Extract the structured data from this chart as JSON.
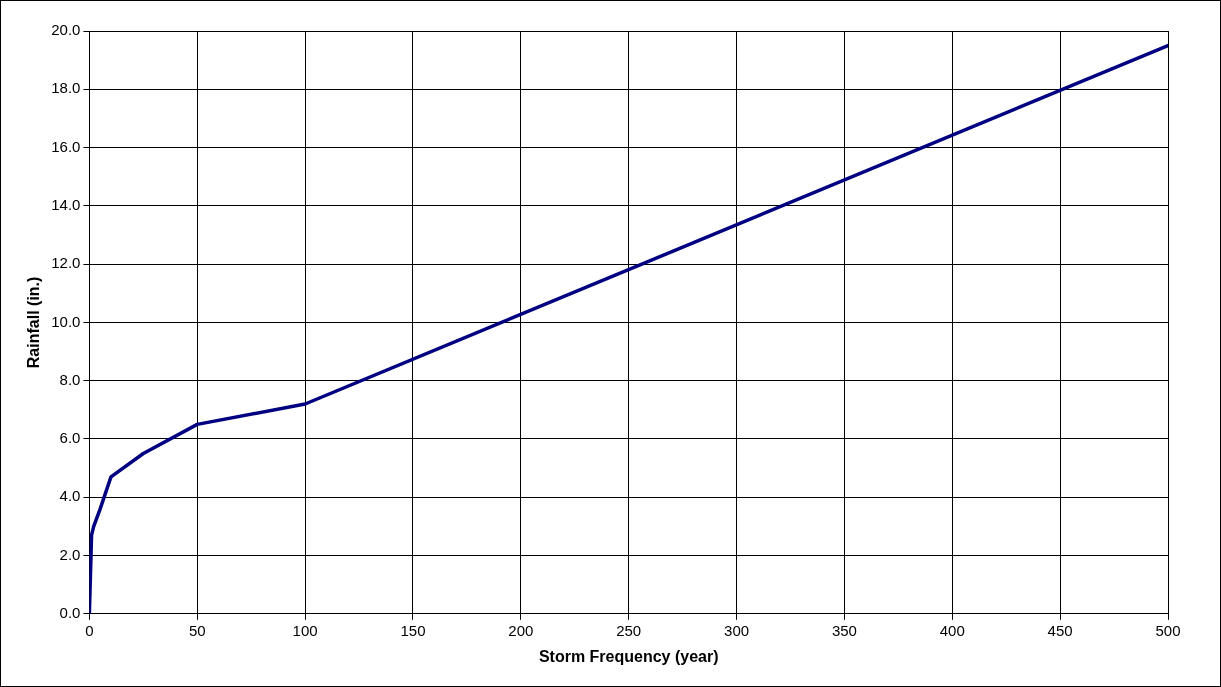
{
  "chart_data": {
    "type": "line",
    "xlabel": "Storm Frequency (year)",
    "ylabel": "Rainfall (in.)",
    "x": [
      0,
      1,
      2,
      5,
      10,
      25,
      50,
      100,
      500
    ],
    "series": [
      {
        "color": "#000080",
        "values": [
          0,
          2.7,
          3.0,
          3.6,
          4.7,
          5.5,
          6.5,
          7.2,
          19.5
        ]
      }
    ],
    "xlim": [
      0,
      500
    ],
    "xticks": [
      0,
      50,
      100,
      150,
      200,
      250,
      300,
      350,
      400,
      450,
      500
    ],
    "ylim": [
      0,
      20
    ],
    "yticks": [
      {
        "value": 0,
        "label": "0.0"
      },
      {
        "value": 2,
        "label": "2.0"
      },
      {
        "value": 4,
        "label": "4.0"
      },
      {
        "value": 6,
        "label": "6.0"
      },
      {
        "value": 8,
        "label": "8.0"
      },
      {
        "value": 10,
        "label": "10.0"
      },
      {
        "value": 12,
        "label": "12.0"
      },
      {
        "value": 14,
        "label": "14.0"
      },
      {
        "value": 16,
        "label": "16.0"
      },
      {
        "value": 18,
        "label": "18.0"
      },
      {
        "value": 20,
        "label": "20.0"
      }
    ],
    "grid": true,
    "legend": false,
    "marker": "none",
    "line_style": "solid"
  }
}
